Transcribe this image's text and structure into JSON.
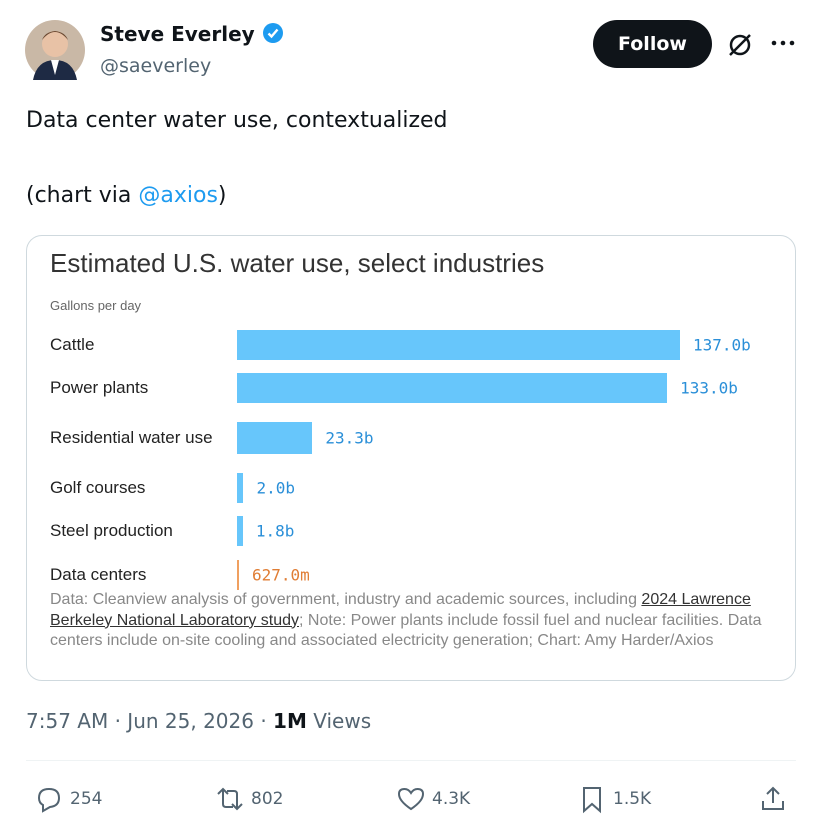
{
  "author": {
    "name": "Steve Everley",
    "handle": "@saeverley"
  },
  "follow_button": "Follow",
  "tweet": {
    "line1": "Data center water use, contextualized",
    "line2_start": "(chart via ",
    "mention": "@axios",
    "line2_end": ")"
  },
  "chart_data": {
    "type": "bar",
    "orientation": "horizontal",
    "title": "Estimated U.S. water use, select industries",
    "subtitle": "Gallons per day",
    "categories": [
      "Cattle",
      "Power plants",
      "Residential water use",
      "Golf courses",
      "Steel production",
      "Data centers"
    ],
    "values": [
      137.0,
      133.0,
      23.3,
      2.0,
      1.8,
      0.627
    ],
    "value_labels": [
      "137.0b",
      "133.0b",
      "23.3b",
      "2.0b",
      "1.8b",
      "627.0m"
    ],
    "colors": [
      "#67c6fb",
      "#67c6fb",
      "#67c6fb",
      "#67c6fb",
      "#67c6fb",
      "#f0a060"
    ],
    "label_colors": [
      "#2a8fd8",
      "#2a8fd8",
      "#2a8fd8",
      "#2a8fd8",
      "#2a8fd8",
      "#e07d34"
    ],
    "note_start": "Data: Cleanview analysis of government, industry and academic sources, including ",
    "note_link": "2024 Lawrence Berkeley National Laboratory study",
    "note_end": "; Note: Power plants include fossil fuel and nuclear facilities. Data centers include on-site cooling and associated electricity generation; Chart: Amy Harder/Axios"
  },
  "meta": {
    "time": "7:57 AM",
    "separator": "·",
    "date": "Jun 25, 2026",
    "views": "1M",
    "views_label": "Views"
  },
  "actions": {
    "replies": "254",
    "reposts": "802",
    "likes": "4.3K",
    "bookmarks": "1.5K"
  }
}
